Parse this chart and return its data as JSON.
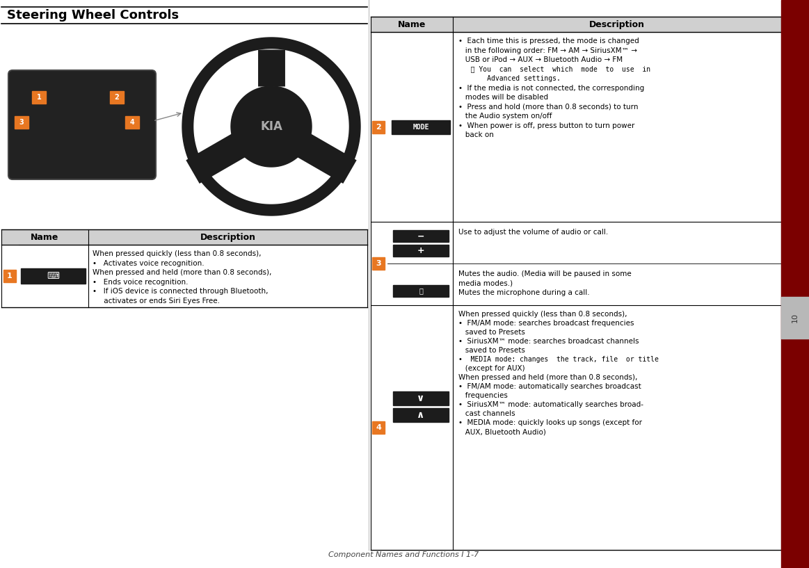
{
  "page_bg": "#ffffff",
  "dark_red_sidebar": "#7b0000",
  "orange": "#e87722",
  "light_gray_header": "#d0d0d0",
  "dark_button": "#1a1a1a",
  "title": "Steering Wheel Controls",
  "footer": "Component Names and Functions I 1-7",
  "left_table_header_name": "Name",
  "left_table_header_desc": "Description",
  "right_table_header_name": "Name",
  "right_table_header_desc": "Description",
  "row1_num": "1",
  "row1_desc_lines": [
    "When pressed quickly (less than 0.8 seconds),",
    "•   Activates voice recognition.",
    "When pressed and held (more than 0.8 seconds),",
    "•   Ends voice recognition.",
    "•   If iOS device is connected through Bluetooth,",
    "     activates or ends Siri Eyes Free."
  ],
  "row2_num": "2",
  "row2_desc_lines": [
    "•  Each time this is pressed, the mode is changed",
    "   in the following order: FM → AM → SiriusXM™ →",
    "   USB or iPod → AUX → Bluetooth Audio → FM",
    "   ⓘ You  can  select  which  mode  to  use  in",
    "       Advanced settings.",
    "•  If the media is not connected, the corresponding",
    "   modes will be disabled",
    "•  Press and hold (more than 0.8 seconds) to turn",
    "   the Audio system on/off",
    "•  When power is off, press button to turn power",
    "   back on"
  ],
  "row2_mono_indices": [
    3,
    4
  ],
  "row3_num": "3",
  "row3_desc_lines_top": [
    "Use to adjust the volume of audio or call."
  ],
  "row3_desc_lines_bot": [
    "Mutes the audio. (Media will be paused in some",
    "media modes.)",
    "Mutes the microphone during a call."
  ],
  "row4_num": "4",
  "row4_desc_lines": [
    "When pressed quickly (less than 0.8 seconds),",
    "•  FM/AM mode: searches broadcast frequencies",
    "   saved to Presets",
    "•  SiriusXM™ mode: searches broadcast channels",
    "   saved to Presets",
    "•  MEDIA mode: changes  the track, file  or title",
    "   (except for AUX)",
    "When pressed and held (more than 0.8 seconds),",
    "•  FM/AM mode: automatically searches broadcast",
    "   frequencies",
    "•  SiriusXM™ mode: automatically searches broad-",
    "   cast channels",
    "•  MEDIA mode: quickly looks up songs (except for",
    "   AUX, Bluetooth Audio)"
  ],
  "row4_mono_indices": [
    5
  ]
}
